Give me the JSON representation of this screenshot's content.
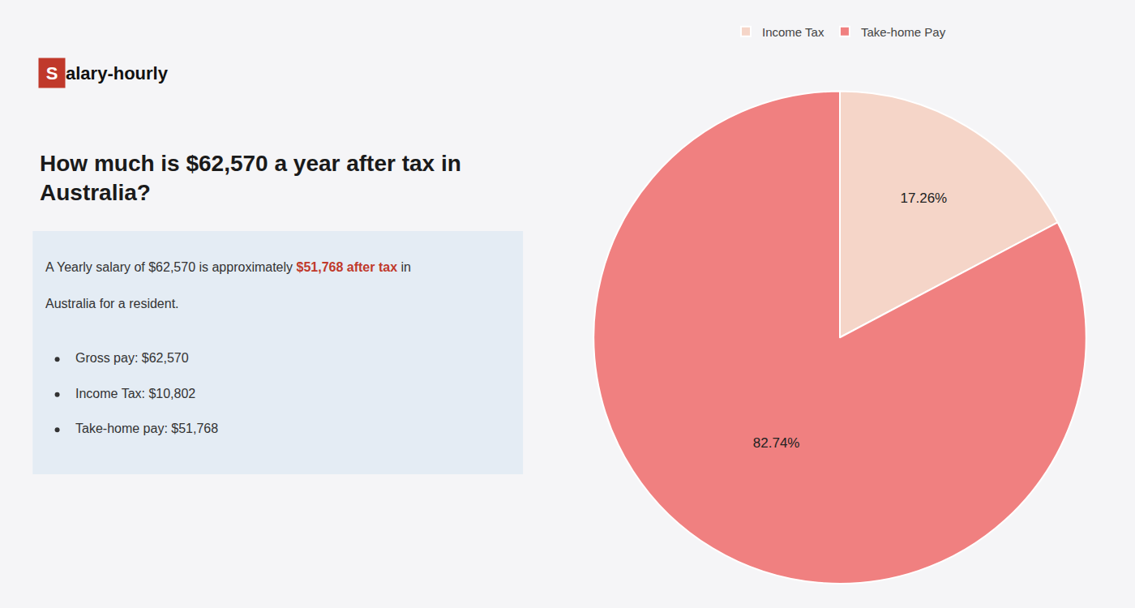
{
  "chart_data": {
    "type": "pie",
    "title": "How much is $62,570 a year after tax in Australia?",
    "categories": [
      "Income Tax",
      "Take-home Pay"
    ],
    "values": [
      17.26,
      82.74
    ],
    "value_labels": [
      "17.26%",
      "82.74%"
    ],
    "data_labels": true,
    "colors": [
      "#f5d5c8",
      "#f08080"
    ],
    "legend": "top",
    "annotations": [
      {
        "text": "S",
        "color": "#ffffff"
      },
      {
        "text": "alary-hourly",
        "color": "#111111"
      },
      {
        "text": "A Yearly salary of $62,570 is approximately ",
        "color": "#333333"
      },
      {
        "text": "$51,768 after tax",
        "color": "#c0392b"
      },
      {
        "text": " in",
        "color": "#333333"
      },
      {
        "text": "Australia for a resident.",
        "color": "#333333"
      },
      {
        "text": "Gross pay: $62,570",
        "color": "#333333"
      },
      {
        "text": "Income Tax: $10,802",
        "color": "#333333"
      },
      {
        "text": "Take-home pay: $51,768",
        "color": "#333333"
      }
    ]
  }
}
